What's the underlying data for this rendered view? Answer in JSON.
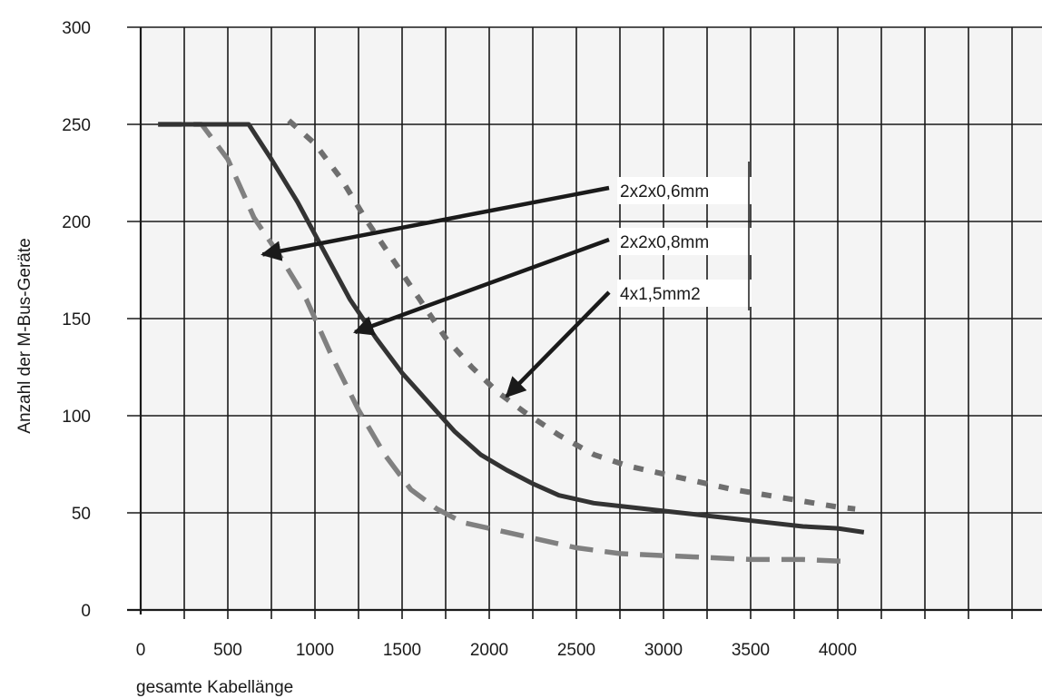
{
  "chart_data": {
    "type": "line",
    "title": "",
    "xlabel": "gesamte Kabellänge",
    "ylabel": "Anzahl der M-Bus-Geräte",
    "xlim": [
      0,
      5200
    ],
    "ylim": [
      0,
      300
    ],
    "x_ticks": [
      0,
      500,
      1000,
      1500,
      2000,
      2500,
      3000,
      3500,
      4000
    ],
    "y_ticks": [
      0,
      50,
      100,
      150,
      200,
      250,
      300
    ],
    "grid": true,
    "grid_color": "#1a1a1a",
    "plot_background": "#f4f4f4",
    "series": [
      {
        "name": "2x2x0,6mm",
        "style": "long-dash",
        "color": "#808080",
        "points": [
          [
            100,
            250
          ],
          [
            350,
            250
          ],
          [
            500,
            232
          ],
          [
            650,
            202
          ],
          [
            800,
            182
          ],
          [
            950,
            160
          ],
          [
            1100,
            130
          ],
          [
            1250,
            103
          ],
          [
            1400,
            80
          ],
          [
            1550,
            62
          ],
          [
            1700,
            52
          ],
          [
            1850,
            45
          ],
          [
            2000,
            42
          ],
          [
            2250,
            37
          ],
          [
            2500,
            32
          ],
          [
            2750,
            29
          ],
          [
            3000,
            28
          ],
          [
            3250,
            27
          ],
          [
            3500,
            26
          ],
          [
            3800,
            26
          ],
          [
            4050,
            25
          ]
        ]
      },
      {
        "name": "2x2x0,8mm",
        "style": "solid",
        "color": "#333333",
        "points": [
          [
            100,
            250
          ],
          [
            620,
            250
          ],
          [
            750,
            232
          ],
          [
            900,
            210
          ],
          [
            1050,
            185
          ],
          [
            1200,
            160
          ],
          [
            1350,
            140
          ],
          [
            1500,
            122
          ],
          [
            1650,
            107
          ],
          [
            1800,
            92
          ],
          [
            1950,
            80
          ],
          [
            2100,
            72
          ],
          [
            2250,
            65
          ],
          [
            2400,
            59
          ],
          [
            2600,
            55
          ],
          [
            2800,
            53
          ],
          [
            3000,
            51
          ],
          [
            3200,
            49
          ],
          [
            3400,
            47
          ],
          [
            3600,
            45
          ],
          [
            3800,
            43
          ],
          [
            4000,
            42
          ],
          [
            4150,
            40
          ]
        ]
      },
      {
        "name": "4x1,5mm2",
        "style": "short-dash",
        "color": "#6e6e6e",
        "points": [
          [
            850,
            252
          ],
          [
            1000,
            240
          ],
          [
            1150,
            222
          ],
          [
            1300,
            200
          ],
          [
            1450,
            180
          ],
          [
            1600,
            160
          ],
          [
            1750,
            140
          ],
          [
            1900,
            125
          ],
          [
            2050,
            112
          ],
          [
            2200,
            102
          ],
          [
            2400,
            90
          ],
          [
            2600,
            80
          ],
          [
            2800,
            74
          ],
          [
            3000,
            70
          ],
          [
            3200,
            66
          ],
          [
            3400,
            62
          ],
          [
            3600,
            59
          ],
          [
            3800,
            56
          ],
          [
            4000,
            53
          ],
          [
            4100,
            52
          ]
        ]
      }
    ],
    "annotations": [
      {
        "label": "2x2x0,6mm",
        "series": "2x2x0,6mm",
        "points_to": [
          700,
          183
        ]
      },
      {
        "label": "2x2x0,8mm",
        "series": "2x2x0,8mm",
        "points_to": [
          1230,
          143
        ]
      },
      {
        "label": "4x1,5mm2",
        "series": "4x1,5mm2",
        "points_to": [
          2100,
          110
        ]
      }
    ]
  }
}
